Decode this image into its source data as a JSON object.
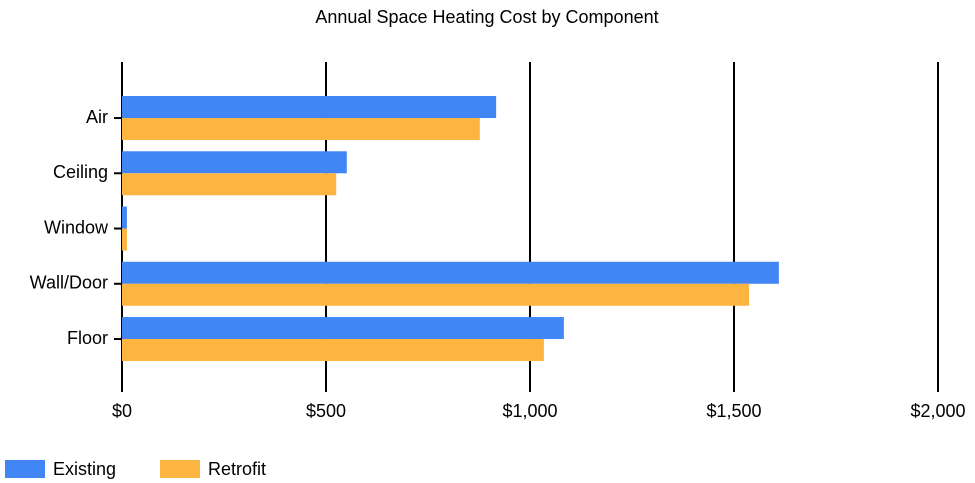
{
  "chart_data": {
    "type": "hbar",
    "title": "Annual Space Heating Cost by Component",
    "categories": [
      "Air",
      "Ceiling",
      "Window",
      "Wall/Door",
      "Floor"
    ],
    "series": [
      {
        "name": "Existing",
        "color": "#4285f4",
        "values": [
          917,
          551,
          12,
          1610,
          1083
        ]
      },
      {
        "name": "Retrofit",
        "color": "#fbb540",
        "values": [
          877,
          525,
          12,
          1537,
          1034
        ]
      }
    ],
    "xlim": [
      0,
      2000
    ],
    "xticks": [
      {
        "value": 0,
        "label": "$0"
      },
      {
        "value": 500,
        "label": "$500"
      },
      {
        "value": 1000,
        "label": "$1,000"
      },
      {
        "value": 1500,
        "label": "$1,500"
      },
      {
        "value": 2000,
        "label": "$2,000"
      }
    ],
    "grid": true,
    "legend": "bottom"
  }
}
